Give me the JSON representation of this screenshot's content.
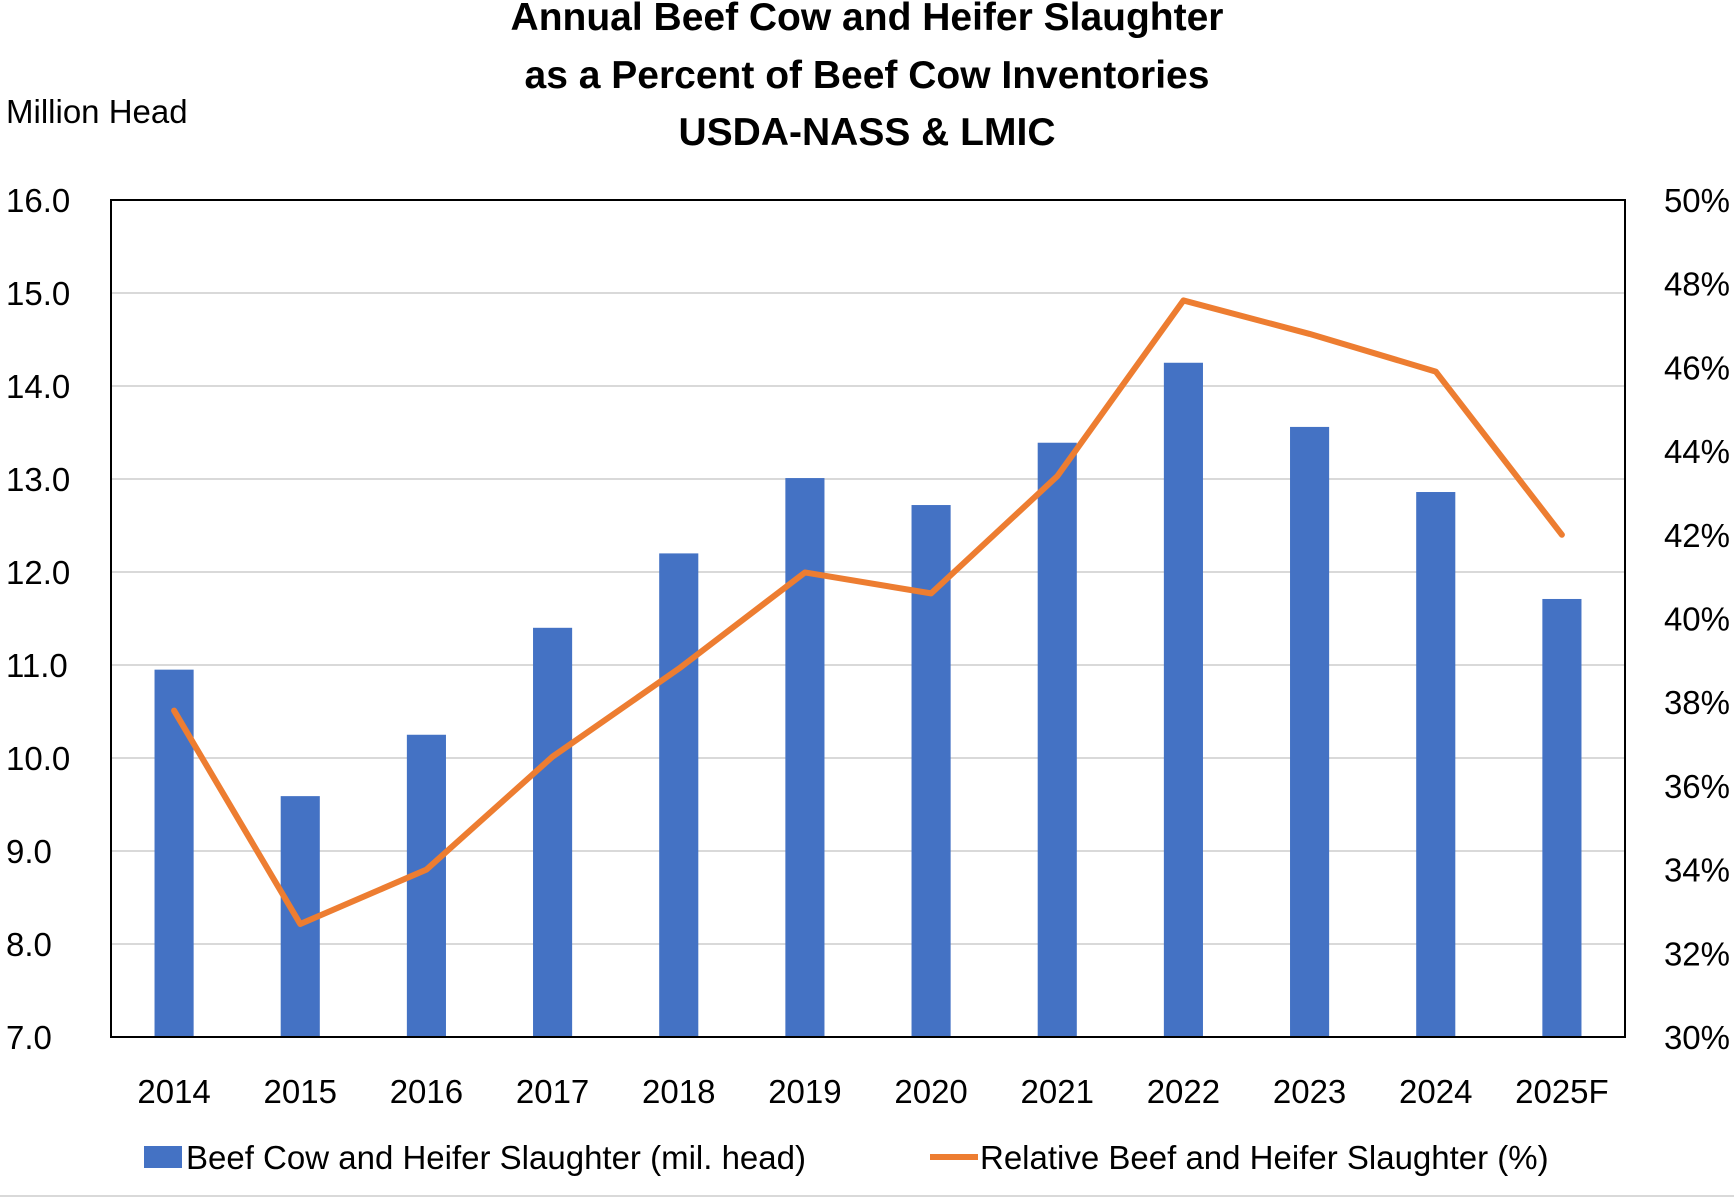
{
  "chart_data": {
    "type": "bar+line",
    "title": [
      "Annual Beef Cow and Heifer Slaughter",
      "as a Percent of Beef Cow Inventories",
      "USDA-NASS  & LMIC"
    ],
    "ylabel_left": "Million Head",
    "categories": [
      "2014",
      "2015",
      "2016",
      "2017",
      "2018",
      "2019",
      "2020",
      "2021",
      "2022",
      "2023",
      "2024",
      "2025F"
    ],
    "y_left": {
      "min": 7.0,
      "max": 16.0,
      "ticks": [
        "7.0",
        "8.0",
        "9.0",
        "10.0",
        "11.0",
        "12.0",
        "13.0",
        "14.0",
        "15.0",
        "16.0"
      ]
    },
    "y_right": {
      "min": 30,
      "max": 50,
      "ticks": [
        "30%",
        "32%",
        "34%",
        "36%",
        "38%",
        "40%",
        "42%",
        "44%",
        "46%",
        "48%",
        "50%"
      ]
    },
    "grid": true,
    "series": [
      {
        "name": "Beef Cow and Heifer Slaughter (mil. head)",
        "type": "bar",
        "axis": "left",
        "color": "#4472C4",
        "values": [
          10.95,
          9.59,
          10.25,
          11.4,
          12.2,
          13.01,
          12.72,
          13.39,
          14.25,
          13.56,
          12.86,
          11.71
        ]
      },
      {
        "name": "Relative Beef and Heifer Slaughter (%)",
        "type": "line",
        "axis": "right",
        "color": "#ED7D31",
        "values": [
          37.8,
          32.7,
          34.0,
          36.7,
          38.8,
          41.1,
          40.6,
          43.4,
          47.6,
          46.8,
          45.9,
          42.0
        ]
      }
    ],
    "legend_position": "bottom"
  }
}
